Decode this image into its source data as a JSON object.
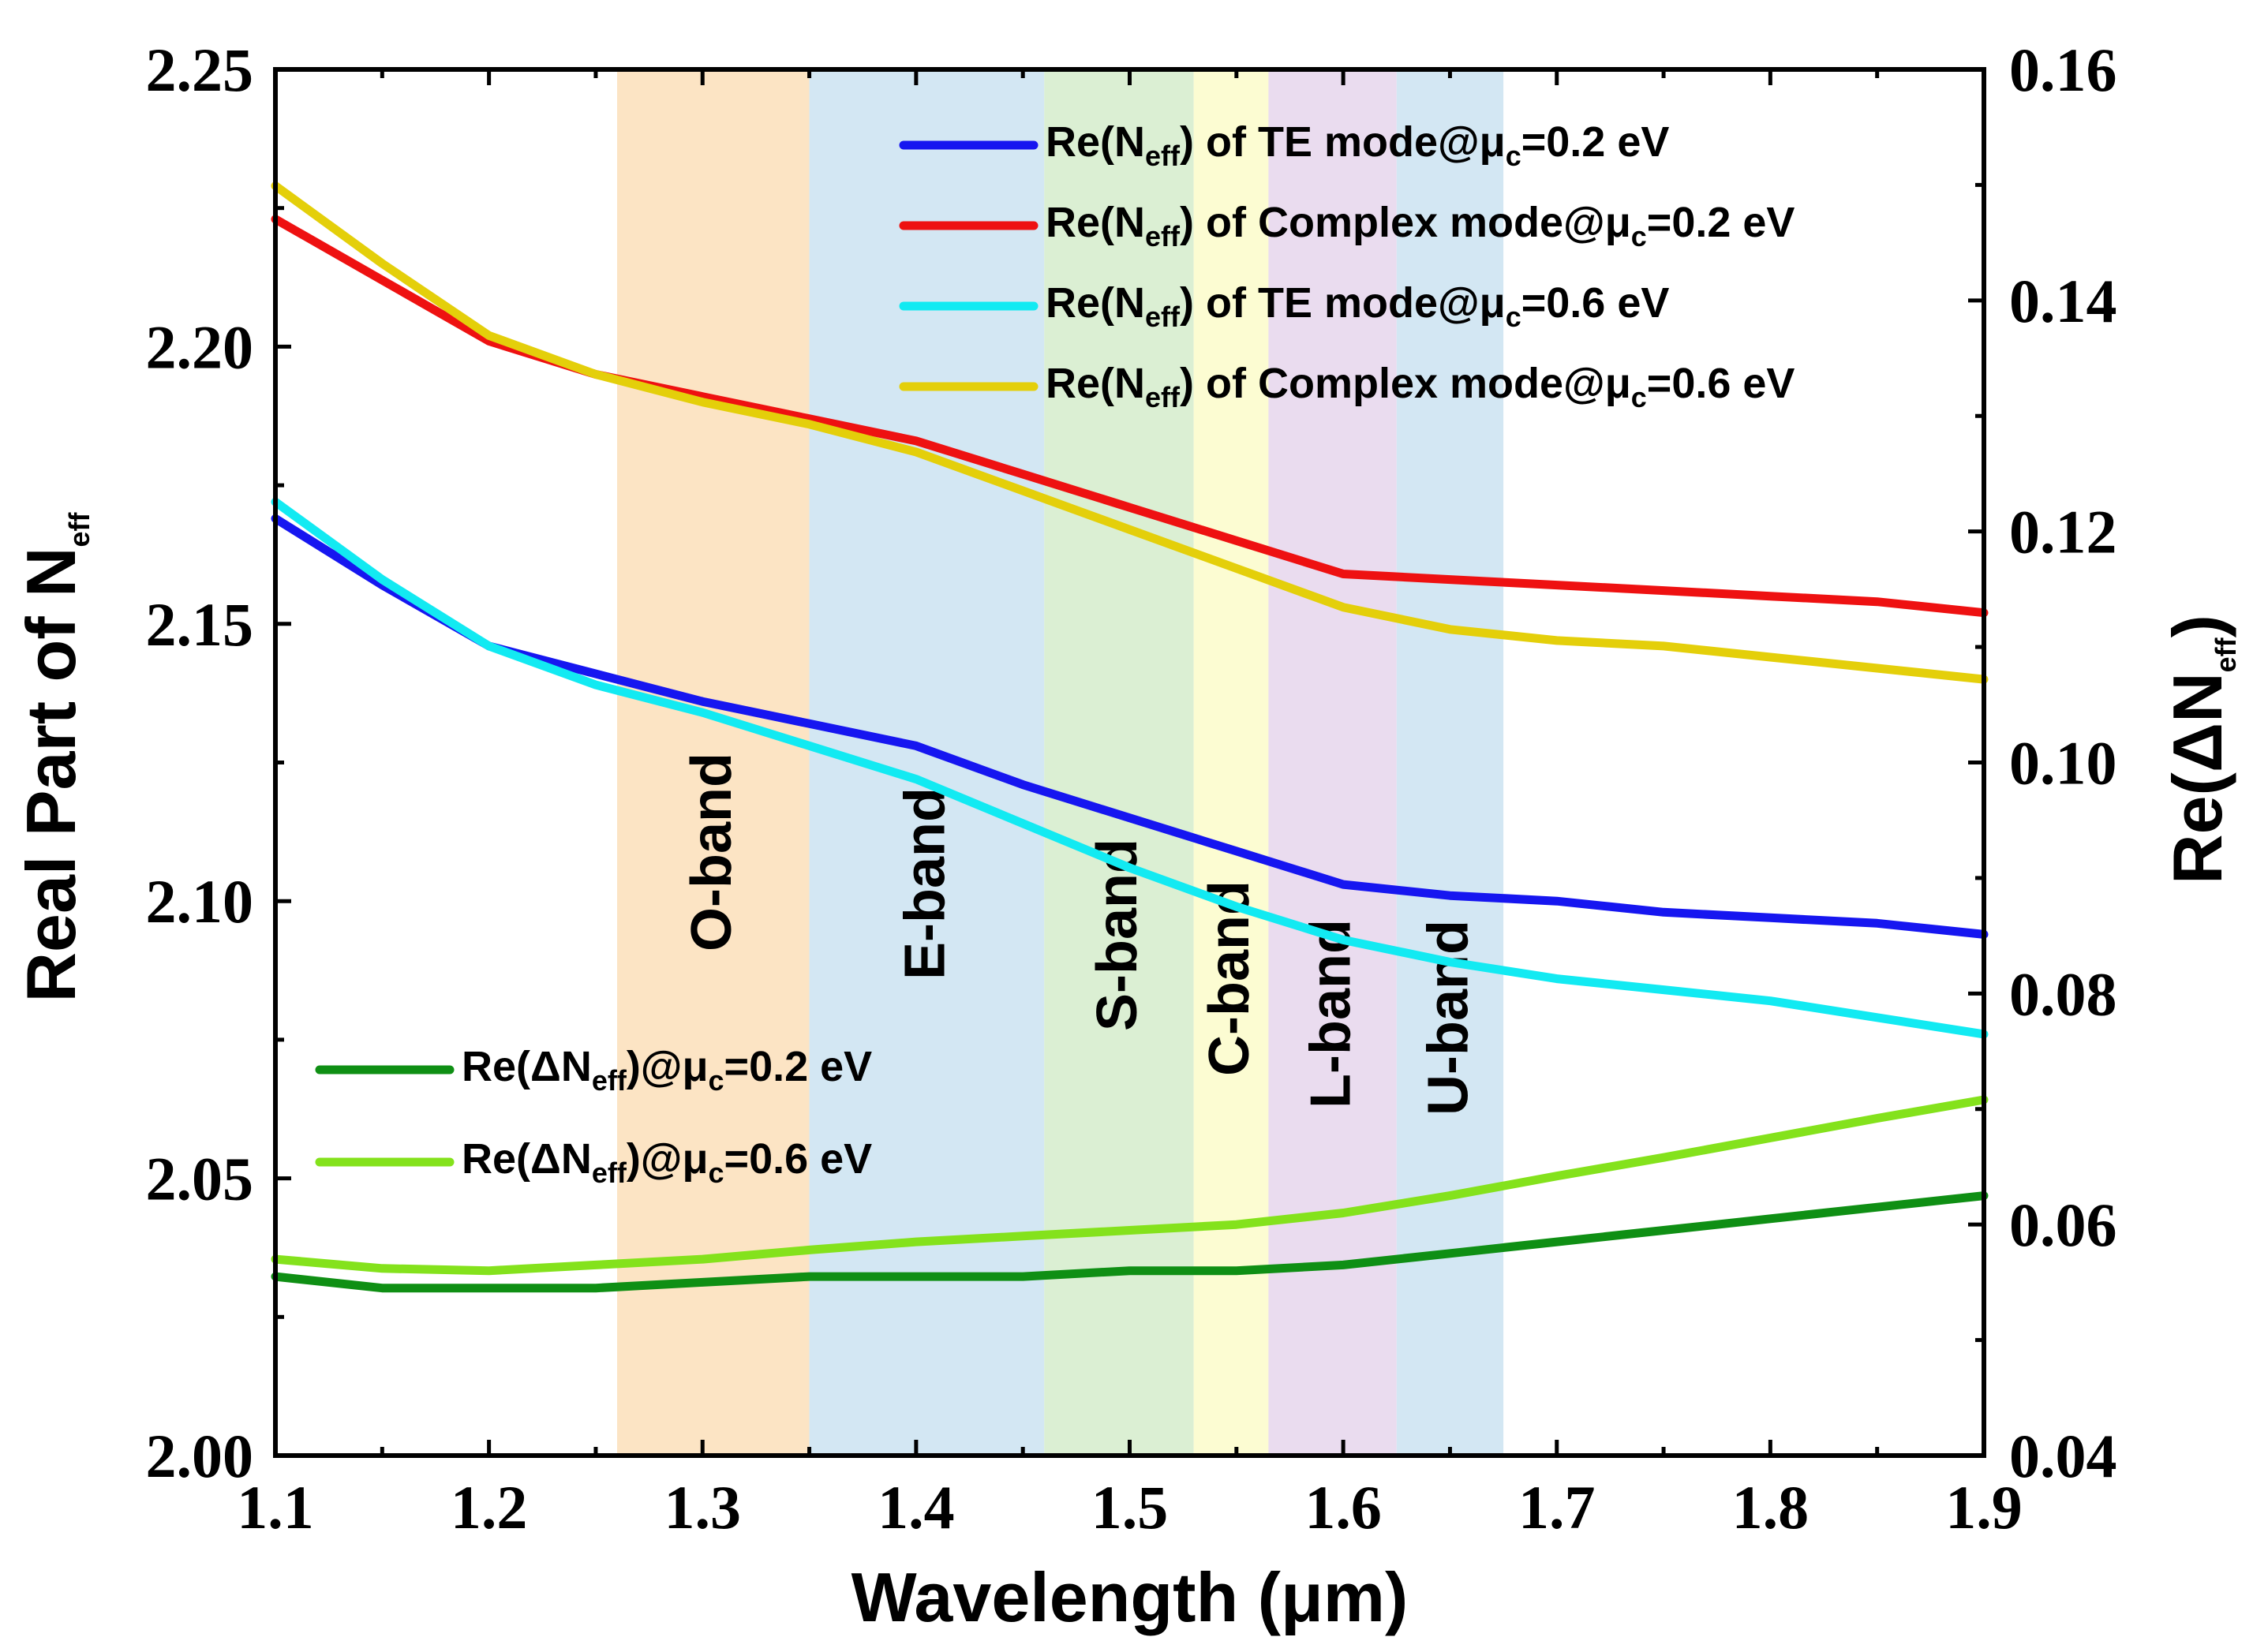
{
  "chart_data": {
    "type": "line",
    "xlabel": "Wavelength (μm)",
    "ylabel_left": "Real Part of N",
    "ylabel_left_sub": "eff",
    "ylabel_right": "Re(ΔN",
    "ylabel_right_sub": "eff",
    "ylabel_right_close": ")",
    "xlim": [
      1.1,
      1.9
    ],
    "ylim_left": [
      2.0,
      2.25
    ],
    "ylim_right": [
      0.04,
      0.16
    ],
    "x_ticks": [
      "1.1",
      "1.2",
      "1.3",
      "1.4",
      "1.5",
      "1.6",
      "1.7",
      "1.8",
      "1.9"
    ],
    "y_left_ticks": [
      "2.00",
      "2.05",
      "2.10",
      "2.15",
      "2.20",
      "2.25"
    ],
    "y_right_ticks": [
      "0.04",
      "0.06",
      "0.08",
      "0.10",
      "0.12",
      "0.14",
      "0.16"
    ],
    "bands": [
      {
        "label": "O-band",
        "x0": 1.26,
        "x1": 1.35,
        "color": "#fce4c4"
      },
      {
        "label": "E-band",
        "x0": 1.35,
        "x1": 1.46,
        "color": "#d3e7f3"
      },
      {
        "label": "S-band",
        "x0": 1.46,
        "x1": 1.53,
        "color": "#dbefd3"
      },
      {
        "label": "C-band",
        "x0": 1.53,
        "x1": 1.565,
        "color": "#fcfcd2"
      },
      {
        "label": "L-band",
        "x0": 1.565,
        "x1": 1.625,
        "color": "#eadcef"
      },
      {
        "label": "U-band",
        "x0": 1.625,
        "x1": 1.675,
        "color": "#d3e7f3"
      }
    ],
    "series": [
      {
        "name": "Re(Neff) of TE mode@μc=0.2 eV",
        "axis": "left",
        "color": "#1616f0",
        "legend": {
          "pre": "Re(N",
          "sub1": "eff",
          "mid": ") of TE mode@μ",
          "sub2": "c",
          "post": "=0.2 eV"
        },
        "x": [
          1.1,
          1.15,
          1.2,
          1.25,
          1.3,
          1.35,
          1.4,
          1.45,
          1.5,
          1.55,
          1.6,
          1.65,
          1.7,
          1.75,
          1.8,
          1.85,
          1.9
        ],
        "values": [
          2.169,
          2.157,
          2.146,
          2.141,
          2.136,
          2.132,
          2.128,
          2.121,
          2.115,
          2.109,
          2.103,
          2.101,
          2.1,
          2.098,
          2.097,
          2.096,
          2.094
        ]
      },
      {
        "name": "Re(Neff) of Complex mode@μc=0.2 eV",
        "axis": "left",
        "color": "#ee1111",
        "legend": {
          "pre": "Re(N",
          "sub1": "eff",
          "mid": ") of Complex mode@μ",
          "sub2": "c",
          "post": "=0.2 eV"
        },
        "x": [
          1.1,
          1.15,
          1.2,
          1.25,
          1.3,
          1.35,
          1.4,
          1.45,
          1.5,
          1.55,
          1.6,
          1.65,
          1.7,
          1.75,
          1.8,
          1.85,
          1.9
        ],
        "values": [
          2.223,
          2.212,
          2.201,
          2.195,
          2.191,
          2.187,
          2.183,
          2.177,
          2.171,
          2.165,
          2.159,
          2.158,
          2.157,
          2.156,
          2.155,
          2.154,
          2.152
        ]
      },
      {
        "name": "Re(Neff) of TE mode@μc=0.6 eV",
        "axis": "left",
        "color": "#12eaf2",
        "legend": {
          "pre": "Re(N",
          "sub1": "eff",
          "mid": ") of TE mode@μ",
          "sub2": "c",
          "post": "=0.6 eV"
        },
        "x": [
          1.1,
          1.15,
          1.2,
          1.25,
          1.3,
          1.35,
          1.4,
          1.45,
          1.5,
          1.55,
          1.6,
          1.65,
          1.7,
          1.75,
          1.8,
          1.85,
          1.9
        ],
        "values": [
          2.172,
          2.158,
          2.146,
          2.139,
          2.134,
          2.128,
          2.122,
          2.114,
          2.106,
          2.099,
          2.093,
          2.089,
          2.086,
          2.084,
          2.082,
          2.079,
          2.076
        ]
      },
      {
        "name": "Re(Neff) of Complex mode@μc=0.6 eV",
        "axis": "left",
        "color": "#e4cf0a",
        "legend": {
          "pre": "Re(N",
          "sub1": "eff",
          "mid": ") of Complex mode@μ",
          "sub2": "c",
          "post": "=0.6 eV"
        },
        "x": [
          1.1,
          1.15,
          1.2,
          1.25,
          1.3,
          1.35,
          1.4,
          1.45,
          1.5,
          1.55,
          1.6,
          1.65,
          1.7,
          1.75,
          1.8,
          1.85,
          1.9
        ],
        "values": [
          2.229,
          2.215,
          2.202,
          2.195,
          2.19,
          2.186,
          2.181,
          2.174,
          2.167,
          2.16,
          2.153,
          2.149,
          2.147,
          2.146,
          2.144,
          2.142,
          2.14
        ]
      },
      {
        "name": "Re(ΔNeff)@μc=0.2 eV",
        "axis": "right",
        "color": "#0f8f14",
        "legend": {
          "pre": "Re(ΔN",
          "sub1": "eff",
          "mid": ")@μ",
          "sub2": "c",
          "post": "=0.2 eV"
        },
        "x": [
          1.1,
          1.15,
          1.2,
          1.25,
          1.3,
          1.35,
          1.4,
          1.45,
          1.5,
          1.55,
          1.6,
          1.65,
          1.7,
          1.75,
          1.8,
          1.85,
          1.9
        ],
        "values": [
          0.0555,
          0.0545,
          0.0545,
          0.0545,
          0.055,
          0.0555,
          0.0555,
          0.0555,
          0.056,
          0.056,
          0.0565,
          0.0575,
          0.0585,
          0.0595,
          0.0605,
          0.0615,
          0.0625
        ]
      },
      {
        "name": "Re(ΔNeff)@μc=0.6 eV",
        "axis": "right",
        "color": "#84e21c",
        "legend": {
          "pre": "Re(ΔN",
          "sub1": "eff",
          "mid": ")@μ",
          "sub2": "c",
          "post": "=0.6 eV"
        },
        "x": [
          1.1,
          1.15,
          1.2,
          1.25,
          1.3,
          1.35,
          1.4,
          1.45,
          1.5,
          1.55,
          1.6,
          1.65,
          1.7,
          1.75,
          1.8,
          1.85,
          1.9
        ],
        "values": [
          0.057,
          0.0562,
          0.056,
          0.0565,
          0.057,
          0.0578,
          0.0585,
          0.059,
          0.0595,
          0.06,
          0.061,
          0.0625,
          0.0642,
          0.0658,
          0.0675,
          0.0692,
          0.0708
        ]
      }
    ]
  }
}
